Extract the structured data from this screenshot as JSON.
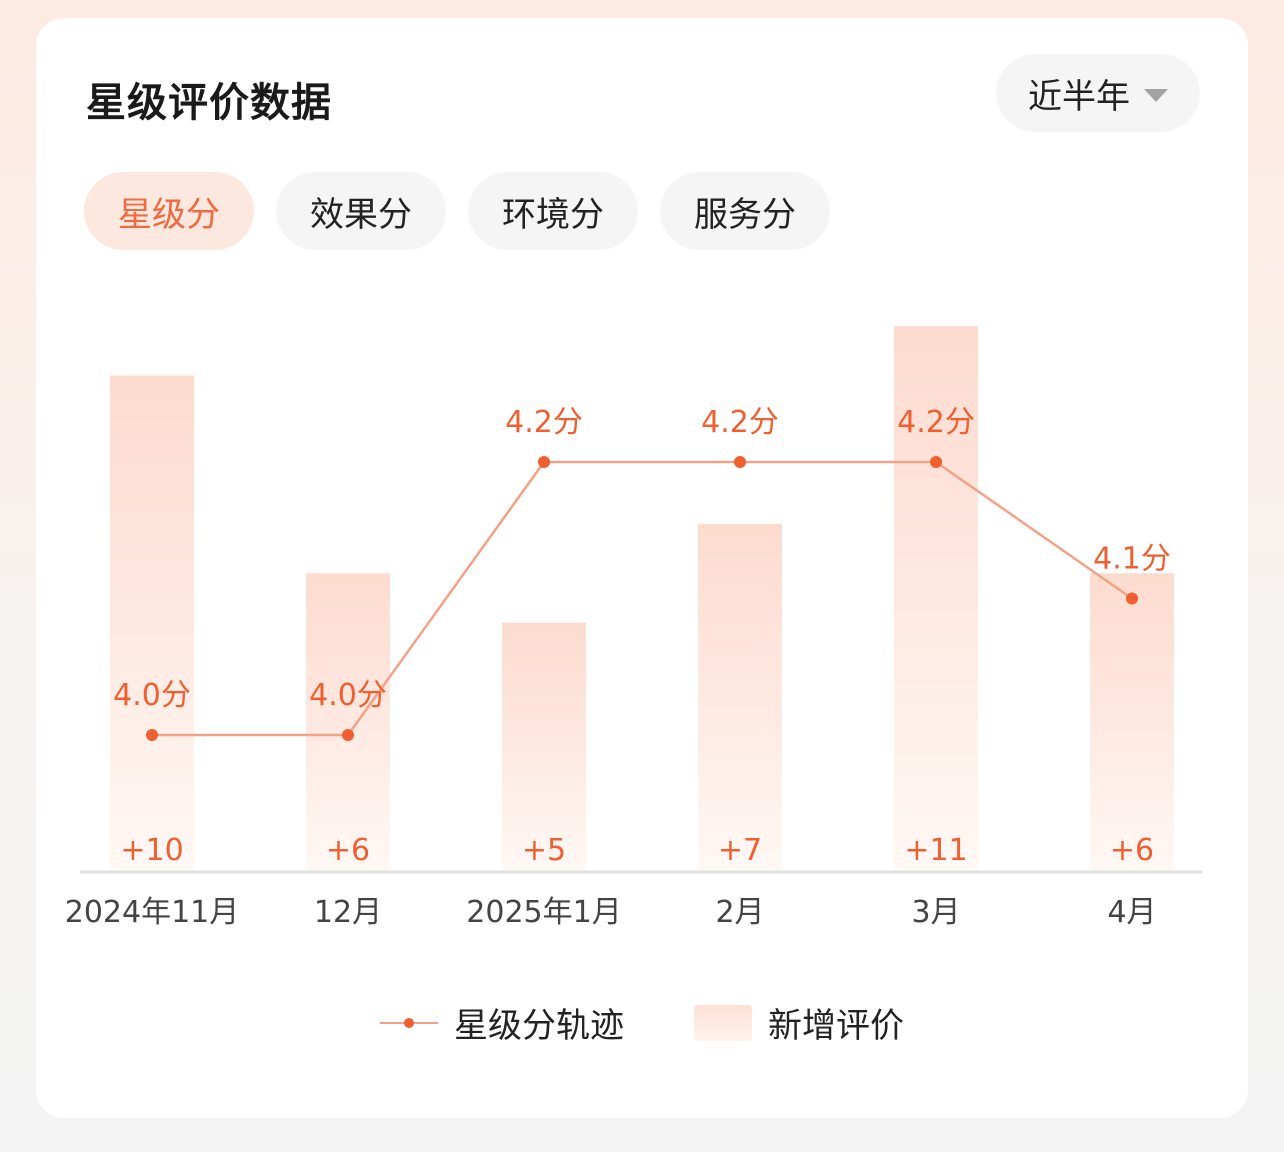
{
  "header": {
    "title": "星级评价数据",
    "period_select": "近半年"
  },
  "tabs": [
    {
      "label": "星级分",
      "active": true
    },
    {
      "label": "效果分",
      "active": false
    },
    {
      "label": "环境分",
      "active": false
    },
    {
      "label": "服务分",
      "active": false
    }
  ],
  "legend": {
    "line_label": "星级分轨迹",
    "bar_label": "新增评价"
  },
  "colors": {
    "accent": "#ef5f2f",
    "line": "#f4a186",
    "bar_top": "#fddbcf",
    "bar_bottom": "#fff6f2",
    "axis_label": "#444444"
  },
  "chart_data": {
    "type": "bar",
    "categories": [
      "2024年11月",
      "12月",
      "2025年1月",
      "2月",
      "3月",
      "4月"
    ],
    "series": [
      {
        "name": "新增评价",
        "type": "bar",
        "values": [
          10,
          6,
          5,
          7,
          11,
          6
        ],
        "labels": [
          "+10",
          "+6",
          "+5",
          "+7",
          "+11",
          "+6"
        ]
      },
      {
        "name": "星级分轨迹",
        "type": "line",
        "values": [
          4.0,
          4.0,
          4.2,
          4.2,
          4.2,
          4.1
        ],
        "labels": [
          "4.0分",
          "4.0分",
          "4.2分",
          "4.2分",
          "4.2分",
          "4.1分"
        ]
      }
    ],
    "legend_position": "bottom"
  }
}
